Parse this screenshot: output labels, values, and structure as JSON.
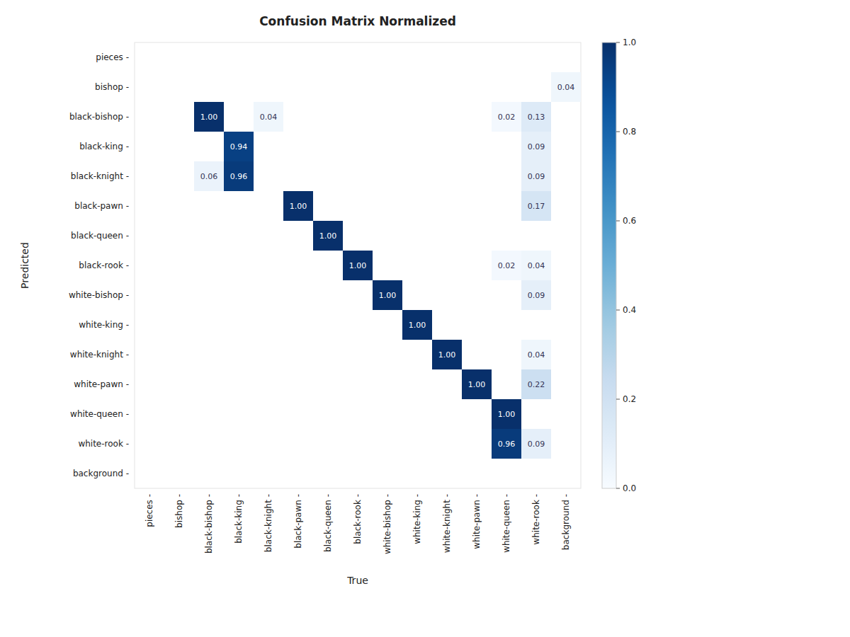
{
  "chart_data": {
    "type": "heatmap",
    "title": "Confusion Matrix Normalized",
    "x_label": "True",
    "y_label": "Predicted",
    "categories": [
      "pieces -",
      "bishop -",
      "black-bishop -",
      "black-king -",
      "black-knight -",
      "black-pawn -",
      "black-queen -",
      "black-rook -",
      "white-bishop -",
      "white-king -",
      "white-knight -",
      "white-pawn -",
      "white-queen -",
      "white-rook -",
      "background -"
    ],
    "values": [
      [
        0,
        0,
        0,
        0,
        0,
        0,
        0,
        0,
        0,
        0,
        0,
        0,
        0,
        0,
        0
      ],
      [
        0,
        0,
        0,
        0,
        0,
        0,
        0,
        0,
        0,
        0,
        0,
        0,
        0,
        0,
        0.04
      ],
      [
        0,
        0,
        1.0,
        0,
        0.04,
        0,
        0,
        0,
        0,
        0,
        0,
        0,
        0.02,
        0.13,
        0
      ],
      [
        0,
        0,
        0,
        0.94,
        0,
        0,
        0,
        0,
        0,
        0,
        0,
        0,
        0,
        0.09,
        0
      ],
      [
        0,
        0,
        0.06,
        0.96,
        0,
        0,
        0,
        0,
        0,
        0,
        0,
        0,
        0,
        0.09,
        0
      ],
      [
        0,
        0,
        0,
        0,
        0,
        1.0,
        0,
        0,
        0,
        0,
        0,
        0,
        0,
        0.17,
        0
      ],
      [
        0,
        0,
        0,
        0,
        0,
        0,
        1.0,
        0,
        0,
        0,
        0,
        0,
        0,
        0,
        0
      ],
      [
        0,
        0,
        0,
        0,
        0,
        0,
        0,
        1.0,
        0,
        0,
        0,
        0,
        0.02,
        0.04,
        0
      ],
      [
        0,
        0,
        0,
        0,
        0,
        0,
        0,
        0,
        1.0,
        0,
        0,
        0,
        0,
        0.09,
        0
      ],
      [
        0,
        0,
        0,
        0,
        0,
        0,
        0,
        0,
        0,
        1.0,
        0,
        0,
        0,
        0,
        0
      ],
      [
        0,
        0,
        0,
        0,
        0,
        0,
        0,
        0,
        0,
        0,
        1.0,
        0,
        0,
        0.04,
        0
      ],
      [
        0,
        0,
        0,
        0,
        0,
        0,
        0,
        0,
        0,
        0,
        0,
        1.0,
        0,
        0.22,
        0
      ],
      [
        0,
        0,
        0,
        0,
        0,
        0,
        0,
        0,
        0,
        0,
        0,
        0,
        1.0,
        0,
        0
      ],
      [
        0,
        0,
        0,
        0,
        0,
        0,
        0,
        0,
        0,
        0,
        0,
        0,
        0.96,
        0.09,
        0
      ],
      [
        0,
        0,
        0,
        0,
        0,
        0,
        0,
        0,
        0,
        0,
        0,
        0,
        0,
        0,
        0
      ]
    ],
    "value_labels": [
      [
        null,
        null,
        null,
        null,
        null,
        null,
        null,
        null,
        null,
        null,
        null,
        null,
        null,
        null,
        null
      ],
      [
        null,
        null,
        null,
        null,
        null,
        null,
        null,
        null,
        null,
        null,
        null,
        null,
        null,
        null,
        "0.04"
      ],
      [
        null,
        null,
        "1.00",
        null,
        "0.04",
        null,
        null,
        null,
        null,
        null,
        null,
        null,
        "0.02",
        "0.13",
        null
      ],
      [
        null,
        null,
        null,
        "0.94",
        null,
        null,
        null,
        null,
        null,
        null,
        null,
        null,
        null,
        "0.09",
        null
      ],
      [
        null,
        null,
        "0.06",
        "0.96",
        null,
        null,
        null,
        null,
        null,
        null,
        null,
        null,
        null,
        "0.09",
        null
      ],
      [
        null,
        null,
        null,
        null,
        null,
        "1.00",
        null,
        null,
        null,
        null,
        null,
        null,
        null,
        "0.17",
        null
      ],
      [
        null,
        null,
        null,
        null,
        null,
        null,
        "1.00",
        null,
        null,
        null,
        null,
        null,
        null,
        null,
        null
      ],
      [
        null,
        null,
        null,
        null,
        null,
        null,
        null,
        "1.00",
        null,
        null,
        null,
        null,
        "0.02",
        "0.04",
        null
      ],
      [
        null,
        null,
        null,
        null,
        null,
        null,
        null,
        null,
        "1.00",
        null,
        null,
        null,
        null,
        "0.09",
        null
      ],
      [
        null,
        null,
        null,
        null,
        null,
        null,
        null,
        null,
        null,
        "1.00",
        null,
        null,
        null,
        null,
        null
      ],
      [
        null,
        null,
        null,
        null,
        null,
        null,
        null,
        null,
        null,
        null,
        "1.00",
        null,
        null,
        "0.04",
        null
      ],
      [
        null,
        null,
        null,
        null,
        null,
        null,
        null,
        null,
        null,
        null,
        null,
        "1.00",
        null,
        "0.22",
        null
      ],
      [
        null,
        null,
        null,
        null,
        null,
        null,
        null,
        null,
        null,
        null,
        null,
        null,
        "1.00",
        null,
        null
      ],
      [
        null,
        null,
        null,
        null,
        null,
        null,
        null,
        null,
        null,
        null,
        null,
        null,
        "0.96",
        "0.09",
        null
      ],
      [
        null,
        null,
        null,
        null,
        null,
        null,
        null,
        null,
        null,
        null,
        null,
        null,
        null,
        null,
        null
      ]
    ],
    "data_labels": true,
    "grid": false,
    "colorbar_lim": [
      0.0,
      1.0
    ],
    "colorbar_ticks": [
      {
        "value": 0.0,
        "label": "0.0"
      },
      0.2,
      0.4,
      0.6,
      0.8,
      {
        "value": 1.0,
        "label": "1.0"
      }
    ]
  }
}
